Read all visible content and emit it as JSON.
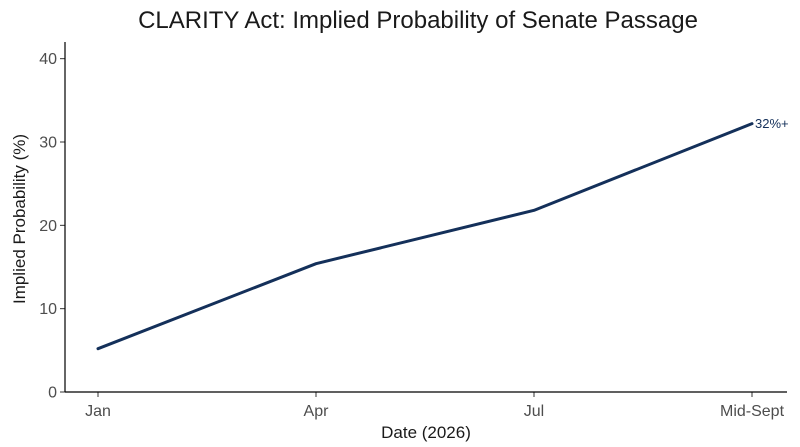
{
  "chart_data": {
    "type": "line",
    "title": "CLARITY Act: Implied Probability of Senate Passage",
    "xlabel": "Date (2026)",
    "ylabel": "Implied Probability (%)",
    "categories": [
      "Jan",
      "Apr",
      "Jul",
      "Mid-Sept"
    ],
    "series": [
      {
        "values": [
          5.2,
          15.4,
          21.8,
          32.2
        ],
        "color": "#14305a"
      }
    ],
    "end_label": "32%+",
    "ylim": [
      0,
      42
    ],
    "yticks": [
      0,
      10,
      20,
      30,
      40
    ],
    "grid": false,
    "legend": "none"
  }
}
